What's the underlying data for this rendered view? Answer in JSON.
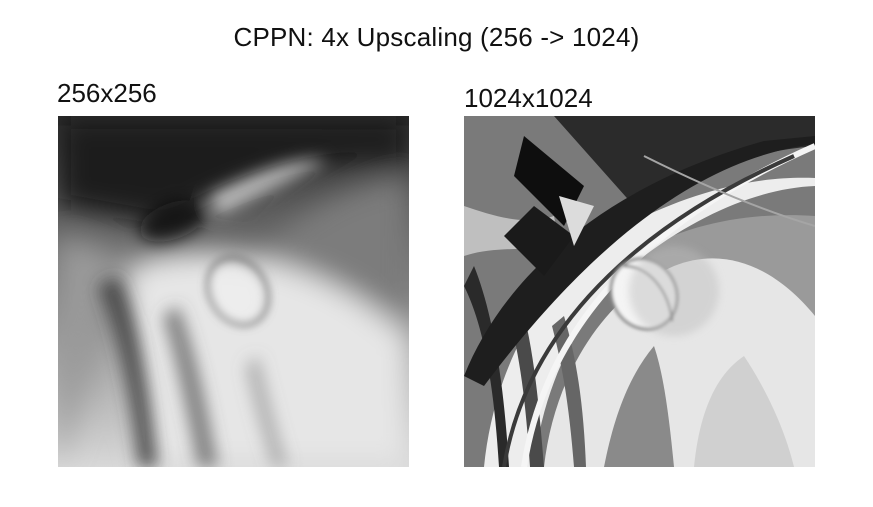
{
  "figure": {
    "title": "CPPN: 4x Upscaling (256 -> 1024)",
    "panels": [
      {
        "label": "256x256"
      },
      {
        "label": "1024x1024"
      }
    ]
  }
}
